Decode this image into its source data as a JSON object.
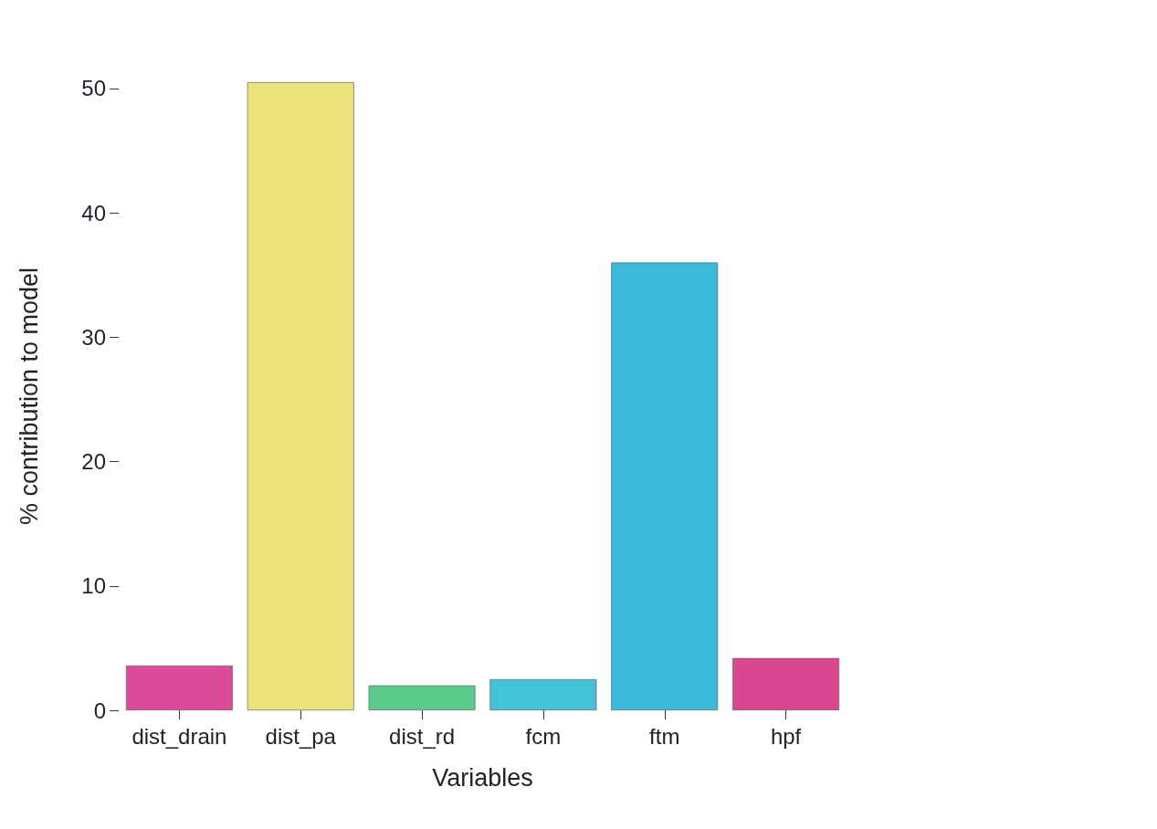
{
  "chart_data": {
    "type": "bar",
    "xlabel": "Variables",
    "ylabel": "% contribution to model",
    "categories": [
      "dist_drain",
      "dist_pa",
      "dist_rd",
      "fcm",
      "ftm",
      "hpf"
    ],
    "values": [
      3.6,
      50.5,
      2,
      2.5,
      36,
      4.2
    ],
    "colors": [
      "#dc4a9a",
      "#ece27a",
      "#5cc98c",
      "#44c2d6",
      "#3dbadb",
      "#d8478f"
    ],
    "ylim": [
      0,
      50.5
    ],
    "yticks": [
      0,
      10,
      20,
      30,
      40,
      50
    ],
    "grid": false
  }
}
